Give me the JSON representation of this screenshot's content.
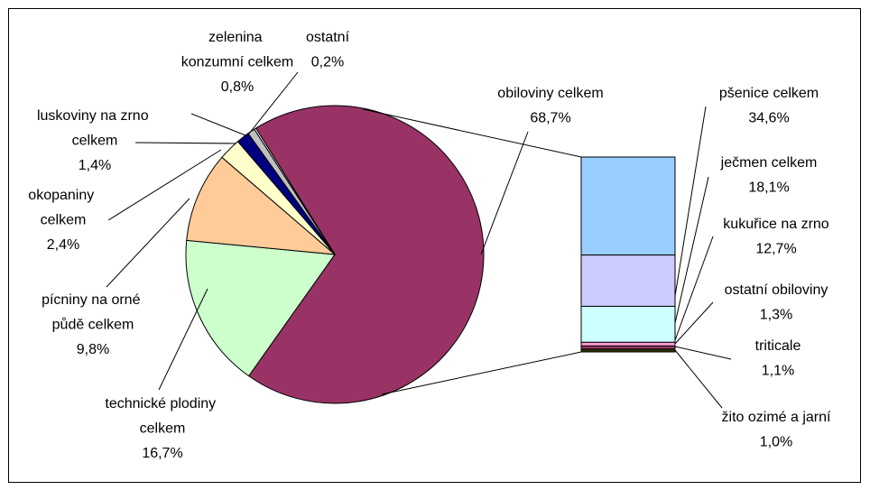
{
  "chart_data": {
    "type": "pie",
    "categories": [
      "obiloviny celkem",
      "technické plodiny celkem",
      "pícniny na orné půdě celkem",
      "okopaniny celkem",
      "luskoviny na zrno celkem",
      "zelenina konzumní celkem",
      "ostatní"
    ],
    "values": [
      68.7,
      16.7,
      9.8,
      2.4,
      1.4,
      0.8,
      0.2
    ],
    "value_labels": [
      "68,7%",
      "16,7%",
      "9,8%",
      "2,4%",
      "1,4%",
      "0,8%",
      "0,2%"
    ],
    "colors": [
      "#993366",
      "#ccffcc",
      "#ffcc99",
      "#ffffcc",
      "#000080",
      "#c0c0c0",
      "#ffffff"
    ],
    "breakdown": {
      "categories": [
        "pšenice celkem",
        "ječmen celkem",
        "kukuřice na zrno",
        "ostatní obiloviny",
        "triticale",
        "žito ozimé a jarní"
      ],
      "values": [
        34.6,
        18.1,
        12.7,
        1.3,
        1.1,
        1.0
      ],
      "value_labels": [
        "34,6%",
        "18,1%",
        "12,7%",
        "1,3%",
        "1,1%",
        "1,0%"
      ],
      "colors": [
        "#99ccff",
        "#ccccff",
        "#ccffff",
        "#ff99cc",
        "#993366",
        "#333300"
      ]
    }
  }
}
